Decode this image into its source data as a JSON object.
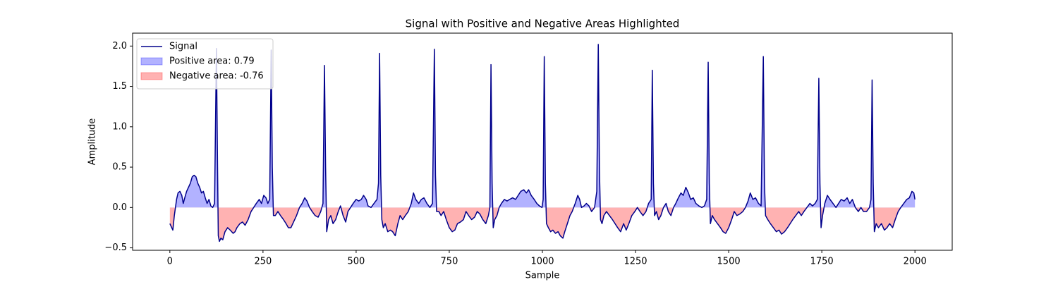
{
  "chart_data": {
    "type": "line",
    "title": "Signal with Positive and Negative Areas Highlighted",
    "x_label": "Sample",
    "y_label": "Amplitude",
    "x": [
      0,
      5,
      8,
      12,
      18,
      22,
      27,
      32,
      36,
      40,
      45,
      50,
      55,
      60,
      65,
      70,
      75,
      80,
      85,
      90,
      95,
      100,
      105,
      110,
      115,
      120,
      125,
      128,
      130,
      133,
      137,
      142,
      148,
      155,
      162,
      170,
      175,
      180,
      188,
      195,
      202,
      210,
      218,
      225,
      232,
      240,
      246,
      252,
      258,
      263,
      268,
      272,
      275,
      278,
      283,
      290,
      297,
      305,
      312,
      318,
      325,
      332,
      340,
      348,
      355,
      362,
      368,
      375,
      382,
      390,
      398,
      405,
      411,
      415,
      418,
      421,
      426,
      432,
      438,
      445,
      452,
      458,
      465,
      472,
      478,
      485,
      492,
      500,
      507,
      514,
      520,
      527,
      532,
      540,
      548,
      556,
      560,
      563,
      566,
      569,
      573,
      578,
      585,
      592,
      598,
      605,
      612,
      618,
      625,
      632,
      640,
      648,
      654,
      660,
      668,
      675,
      682,
      690,
      698,
      705,
      710,
      713,
      716,
      722,
      728,
      735,
      742,
      750,
      758,
      765,
      772,
      780,
      788,
      795,
      802,
      810,
      818,
      825,
      832,
      840,
      848,
      855,
      859,
      862,
      865,
      868,
      872,
      878,
      884,
      890,
      898,
      905,
      912,
      920,
      928,
      935,
      942,
      950,
      957,
      963,
      970,
      978,
      985,
      992,
      999,
      1002,
      1005,
      1008,
      1011,
      1016,
      1022,
      1028,
      1035,
      1042,
      1048,
      1055,
      1060,
      1067,
      1074,
      1080,
      1088,
      1095,
      1100,
      1105,
      1112,
      1118,
      1125,
      1132,
      1140,
      1146,
      1150,
      1153,
      1156,
      1160,
      1165,
      1172,
      1180,
      1188,
      1195,
      1202,
      1210,
      1218,
      1225,
      1232,
      1240,
      1248,
      1255,
      1262,
      1270,
      1278,
      1285,
      1292,
      1295,
      1298,
      1301,
      1306,
      1312,
      1318,
      1325,
      1332,
      1338,
      1345,
      1352,
      1358,
      1365,
      1372,
      1378,
      1385,
      1392,
      1398,
      1405,
      1412,
      1420,
      1428,
      1435,
      1441,
      1445,
      1448,
      1451,
      1456,
      1462,
      1470,
      1478,
      1485,
      1492,
      1500,
      1508,
      1515,
      1522,
      1530,
      1538,
      1545,
      1552,
      1558,
      1565,
      1572,
      1580,
      1587,
      1593,
      1596,
      1599,
      1605,
      1612,
      1620,
      1628,
      1635,
      1642,
      1650,
      1658,
      1665,
      1672,
      1680,
      1688,
      1695,
      1702,
      1710,
      1718,
      1725,
      1732,
      1738,
      1742,
      1745,
      1748,
      1752,
      1758,
      1765,
      1772,
      1780,
      1788,
      1795,
      1802,
      1810,
      1818,
      1825,
      1832,
      1840,
      1848,
      1855,
      1862,
      1870,
      1878,
      1882,
      1885,
      1888,
      1891,
      1896,
      1902,
      1910,
      1918,
      1925,
      1932,
      1940,
      1947,
      1955,
      1962,
      1970,
      1978,
      1985,
      1992,
      1997,
      2000
    ],
    "series": [
      {
        "name": "Signal",
        "color": "#00008b",
        "values": [
          -0.2,
          -0.25,
          -0.28,
          -0.1,
          0.1,
          0.18,
          0.2,
          0.15,
          0.05,
          0.12,
          0.2,
          0.25,
          0.3,
          0.38,
          0.4,
          0.38,
          0.3,
          0.25,
          0.18,
          0.2,
          0.12,
          0.05,
          0.1,
          0.02,
          0.0,
          0.05,
          1.97,
          0.5,
          -0.35,
          -0.42,
          -0.38,
          -0.4,
          -0.3,
          -0.25,
          -0.28,
          -0.32,
          -0.3,
          -0.25,
          -0.2,
          -0.18,
          -0.22,
          -0.15,
          -0.05,
          0.0,
          0.05,
          0.1,
          0.05,
          0.15,
          0.12,
          0.05,
          0.1,
          1.95,
          0.5,
          -0.1,
          -0.1,
          -0.05,
          -0.1,
          -0.15,
          -0.2,
          -0.25,
          -0.25,
          -0.18,
          -0.1,
          0.0,
          0.05,
          0.12,
          0.08,
          0.0,
          -0.05,
          -0.1,
          -0.12,
          -0.05,
          0.05,
          1.76,
          0.5,
          -0.3,
          -0.15,
          -0.1,
          -0.2,
          -0.15,
          -0.05,
          0.02,
          -0.1,
          -0.18,
          -0.05,
          0.0,
          0.05,
          0.1,
          0.08,
          0.1,
          0.15,
          0.1,
          0.02,
          0.0,
          0.05,
          0.1,
          0.3,
          1.91,
          0.4,
          -0.15,
          -0.25,
          -0.2,
          -0.3,
          -0.28,
          -0.3,
          -0.35,
          -0.2,
          -0.1,
          -0.15,
          -0.1,
          -0.05,
          0.05,
          0.18,
          0.1,
          0.05,
          0.1,
          0.12,
          0.05,
          0.0,
          0.05,
          1.96,
          0.4,
          -0.05,
          -0.05,
          -0.1,
          -0.05,
          -0.15,
          -0.25,
          -0.3,
          -0.28,
          -0.2,
          -0.18,
          -0.15,
          -0.05,
          -0.1,
          -0.15,
          -0.12,
          -0.05,
          -0.08,
          -0.15,
          -0.2,
          -0.1,
          0.0,
          1.77,
          0.3,
          -0.25,
          -0.15,
          -0.1,
          0.0,
          0.05,
          0.1,
          0.08,
          0.1,
          0.12,
          0.1,
          0.15,
          0.2,
          0.22,
          0.18,
          0.22,
          0.15,
          0.1,
          0.05,
          0.02,
          0.0,
          0.1,
          1.87,
          0.3,
          -0.2,
          -0.25,
          -0.3,
          -0.28,
          -0.32,
          -0.3,
          -0.35,
          -0.38,
          -0.3,
          -0.2,
          -0.1,
          -0.05,
          0.05,
          0.15,
          0.1,
          0.0,
          0.02,
          0.05,
          0.02,
          -0.05,
          0.0,
          0.2,
          2.02,
          0.5,
          -0.15,
          -0.2,
          -0.1,
          -0.05,
          -0.1,
          -0.15,
          -0.2,
          -0.25,
          -0.3,
          -0.2,
          -0.28,
          -0.2,
          -0.1,
          -0.05,
          0.0,
          -0.05,
          -0.1,
          -0.05,
          0.05,
          0.1,
          1.7,
          0.3,
          -0.1,
          -0.05,
          -0.15,
          -0.1,
          0.0,
          0.05,
          -0.05,
          -0.1,
          0.0,
          0.05,
          0.12,
          0.18,
          0.15,
          0.25,
          0.18,
          0.1,
          0.12,
          0.05,
          0.02,
          0.0,
          0.02,
          0.1,
          1.8,
          0.3,
          -0.2,
          -0.1,
          -0.15,
          -0.2,
          -0.25,
          -0.3,
          -0.32,
          -0.25,
          -0.15,
          -0.05,
          -0.1,
          -0.08,
          -0.05,
          0.0,
          0.08,
          0.18,
          0.1,
          0.12,
          0.05,
          0.02,
          1.87,
          0.3,
          -0.1,
          -0.15,
          -0.2,
          -0.25,
          -0.3,
          -0.28,
          -0.33,
          -0.3,
          -0.25,
          -0.2,
          -0.15,
          -0.1,
          -0.05,
          -0.1,
          -0.05,
          0.0,
          0.05,
          0.02,
          0.05,
          0.1,
          1.6,
          0.3,
          -0.25,
          -0.1,
          0.05,
          0.15,
          0.1,
          0.05,
          0.0,
          0.05,
          0.1,
          0.08,
          0.12,
          0.05,
          0.1,
          0.0,
          -0.05,
          0.0,
          -0.05,
          -0.05,
          0.0,
          0.1,
          1.58,
          0.3,
          -0.3,
          -0.2,
          -0.25,
          -0.2,
          -0.28,
          -0.25,
          -0.2,
          -0.25,
          -0.15,
          -0.05,
          0.0,
          0.05,
          0.1,
          0.12,
          0.2,
          0.18,
          0.1
        ]
      }
    ],
    "areas": [
      {
        "name": "Positive area: 0.79",
        "color": "blue",
        "side": "positive"
      },
      {
        "name": "Negative area: -0.76",
        "color": "red",
        "side": "negative"
      }
    ],
    "area_alpha": 0.3,
    "xlim": [
      -100,
      2100
    ],
    "xticks": [
      0,
      250,
      500,
      750,
      1000,
      1250,
      1500,
      1750,
      2000
    ],
    "ylim": [
      -0.53,
      2.16
    ],
    "yticks": [
      {
        "value": -0.5,
        "label": "−0.5"
      },
      {
        "value": 0.0,
        "label": "0.0"
      },
      {
        "value": 0.5,
        "label": "0.5"
      },
      {
        "value": 1.0,
        "label": "1.0"
      },
      {
        "value": 1.5,
        "label": "1.5"
      },
      {
        "value": 2.0,
        "label": "2.0"
      }
    ],
    "grid": false,
    "legend": "upper left"
  }
}
